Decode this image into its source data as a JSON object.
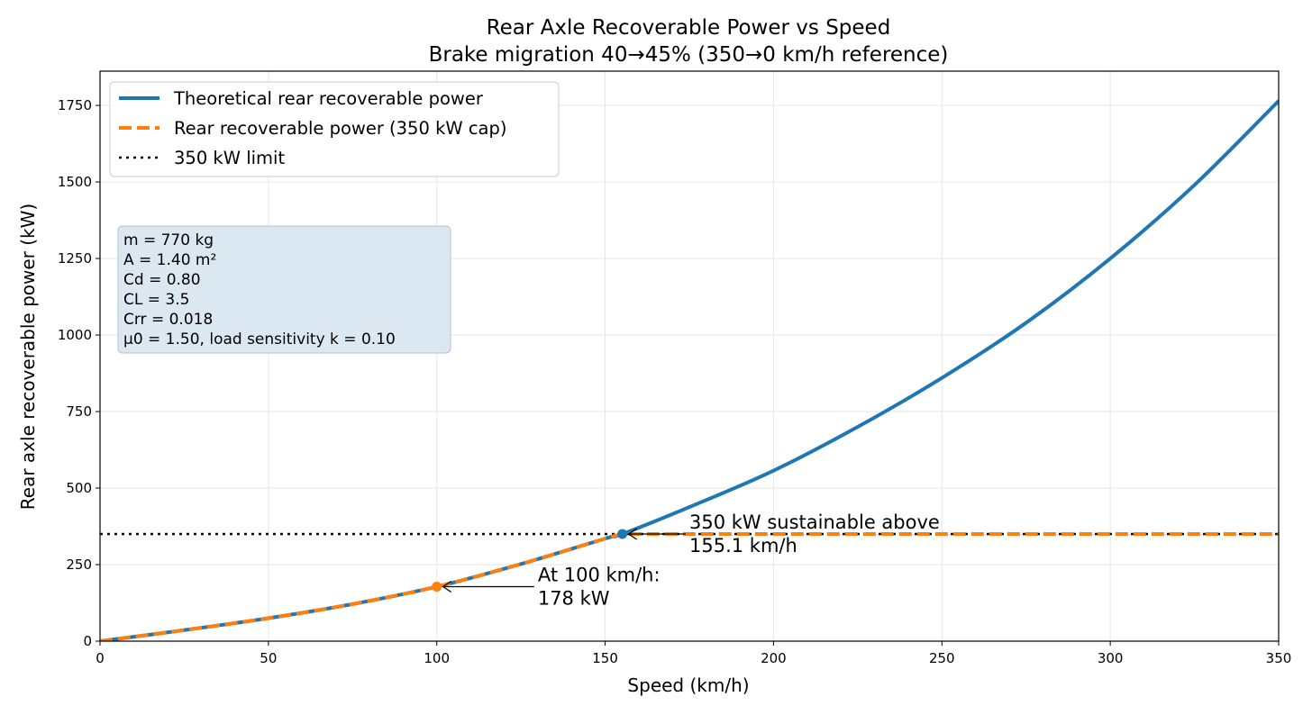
{
  "chart_data": {
    "type": "line",
    "title": "Rear Axle Recoverable Power vs Speed",
    "subtitle": "Brake migration 40→45% (350→0 km/h reference)",
    "xlabel": "Speed (km/h)",
    "ylabel": "Rear axle recoverable power (kW)",
    "xlim": [
      0,
      350
    ],
    "ylim": [
      0,
      1862
    ],
    "x_ticks": [
      "0",
      "50",
      "100",
      "150",
      "200",
      "250",
      "300",
      "350"
    ],
    "y_ticks": [
      "0",
      "250",
      "500",
      "750",
      "1000",
      "1250",
      "1500",
      "1750"
    ],
    "grid": true,
    "legend_position": "top-left",
    "x": [
      0,
      25,
      50,
      75,
      100,
      125,
      150,
      155.1,
      175,
      200,
      225,
      250,
      275,
      300,
      325,
      350
    ],
    "series": [
      {
        "name": "Theoretical rear recoverable power",
        "color": "#1f77b4",
        "style": "solid",
        "values": [
          0,
          36,
          75,
          121,
          178,
          252,
          335,
          350,
          438,
          557,
          700,
          860,
          1040,
          1250,
          1490,
          1765
        ]
      },
      {
        "name": "Rear recoverable power (350 kW cap)",
        "color": "#ff7f0e",
        "style": "dashed",
        "values": [
          0,
          36,
          75,
          121,
          178,
          252,
          335,
          350,
          350,
          350,
          350,
          350,
          350,
          350,
          350,
          350
        ]
      },
      {
        "name": "350 kW limit",
        "color": "#000000",
        "style": "dotted",
        "values": [
          350,
          350,
          350,
          350,
          350,
          350,
          350,
          350,
          350,
          350,
          350,
          350,
          350,
          350,
          350,
          350
        ]
      }
    ],
    "markers": [
      {
        "x": 100,
        "y": 178,
        "color": "#ff7f0e"
      },
      {
        "x": 155.1,
        "y": 350,
        "color": "#1f77b4"
      }
    ],
    "annotations": [
      {
        "lines": [
          "At 100 km/h:",
          "178 kW"
        ],
        "point_x": 100,
        "point_y": 178,
        "text_x": 130,
        "text_y": 178
      },
      {
        "lines": [
          "350 kW sustainable above",
          "155.1 km/h"
        ],
        "point_x": 155.1,
        "point_y": 350,
        "text_x": 175,
        "text_y": 350
      }
    ],
    "parameters": [
      "m = 770 kg",
      "A = 1.40 m²",
      "Cd = 0.80",
      "CL = 3.5",
      "Crr = 0.018",
      "μ0 = 1.50, load sensitivity k = 0.10"
    ]
  }
}
